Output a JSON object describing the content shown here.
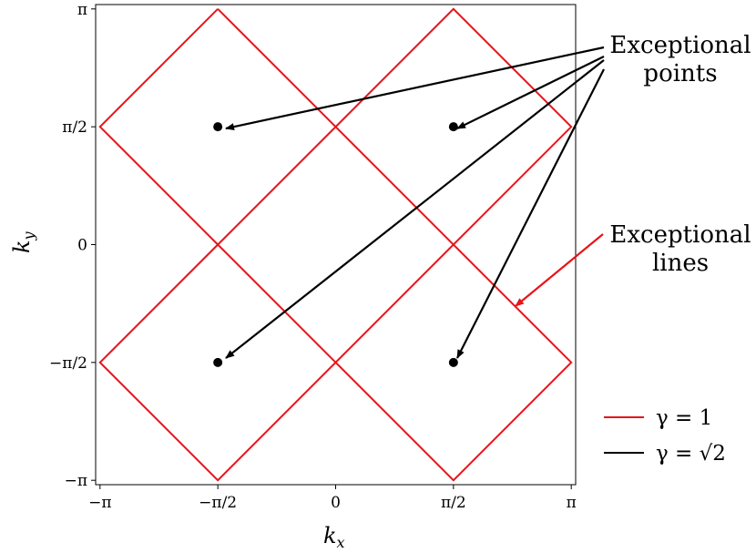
{
  "chart_data": {
    "type": "line",
    "xlabel": "k",
    "xlabel_sub": "x",
    "ylabel": "k",
    "ylabel_sub": "y",
    "xlim": [
      -3.2,
      3.2
    ],
    "ylim": [
      -3.2,
      3.2
    ],
    "x_ticks": [
      {
        "value": -3.14159,
        "label": "−π"
      },
      {
        "value": -1.5708,
        "label": "−π/2"
      },
      {
        "value": 0,
        "label": "0"
      },
      {
        "value": 1.5708,
        "label": "π/2"
      },
      {
        "value": 3.14159,
        "label": "π"
      }
    ],
    "y_ticks": [
      {
        "value": -3.14159,
        "label": "−π"
      },
      {
        "value": -1.5708,
        "label": "−π/2"
      },
      {
        "value": 0,
        "label": "0"
      },
      {
        "value": 1.5708,
        "label": "π/2"
      },
      {
        "value": 3.14159,
        "label": "π"
      }
    ],
    "grid": false,
    "legend_position": "lower-right",
    "series": [
      {
        "name": "γ = 1",
        "color": "#e8141b",
        "segments": [
          [
            [
              -1.5708,
              3.14159
            ],
            [
              1.5708,
              0
            ],
            [
              -1.5708,
              -3.14159
            ],
            [
              -3.14159,
              -1.5708
            ],
            [
              -1.5708,
              0
            ],
            [
              1.5708,
              3.14159
            ],
            [
              3.14159,
              1.5708
            ],
            [
              0,
              -1.5708
            ],
            [
              1.5708,
              -3.14159
            ],
            [
              3.14159,
              -1.5708
            ],
            [
              0,
              1.5708
            ],
            [
              -1.5708,
              3.14159
            ]
          ],
          [
            [
              -1.5708,
              3.14159
            ],
            [
              -3.14159,
              1.5708
            ],
            [
              -1.5708,
              0
            ],
            [
              0,
              -1.5708
            ]
          ]
        ]
      },
      {
        "name": "γ = √2",
        "color": "#000000",
        "points": [
          [
            -1.5708,
            1.5708
          ],
          [
            1.5708,
            1.5708
          ],
          [
            -1.5708,
            -1.5708
          ],
          [
            1.5708,
            -1.5708
          ]
        ]
      }
    ],
    "annotations": [
      {
        "line1": "Exceptional",
        "line2": "points",
        "color": "#000000"
      },
      {
        "line1": "Exceptional",
        "line2": "lines",
        "color": "#e8141b"
      }
    ]
  }
}
